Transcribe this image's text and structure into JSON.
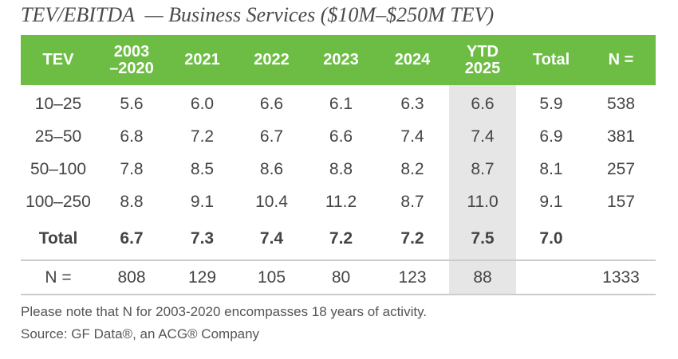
{
  "chart_data": {
    "type": "table",
    "title": "TEV/EBITDA  — Business Services ($10M–$250M TEV)",
    "columns": [
      "TEV",
      "2003\n–2020",
      "2021",
      "2022",
      "2023",
      "2024",
      "YTD\n2025",
      "Total",
      "N ="
    ],
    "rows": [
      [
        "10–25",
        "5.6",
        "6.0",
        "6.6",
        "6.1",
        "6.3",
        "6.6",
        "5.9",
        "538"
      ],
      [
        "25–50",
        "6.8",
        "7.2",
        "6.7",
        "6.6",
        "7.4",
        "7.4",
        "6.9",
        "381"
      ],
      [
        "50–100",
        "7.8",
        "8.5",
        "8.6",
        "8.8",
        "8.2",
        "8.7",
        "8.1",
        "257"
      ],
      [
        "100–250",
        "8.8",
        "9.1",
        "10.4",
        "11.2",
        "8.7",
        "11.0",
        "9.1",
        "157"
      ]
    ],
    "total_row": [
      "Total",
      "6.7",
      "7.3",
      "7.4",
      "7.2",
      "7.2",
      "7.5",
      "7.0",
      ""
    ],
    "n_row": [
      "N =",
      "808",
      "129",
      "105",
      "80",
      "123",
      "88",
      "",
      "1333"
    ],
    "highlight_column": "YTD\n2025",
    "header_color": "#6dbd45",
    "highlight_color": "#e6e6e6"
  },
  "notes": {
    "note": "Please note that N for 2003-2020 encompasses 18 years of activity.",
    "source": "Source: GF Data®, an ACG® Company"
  }
}
